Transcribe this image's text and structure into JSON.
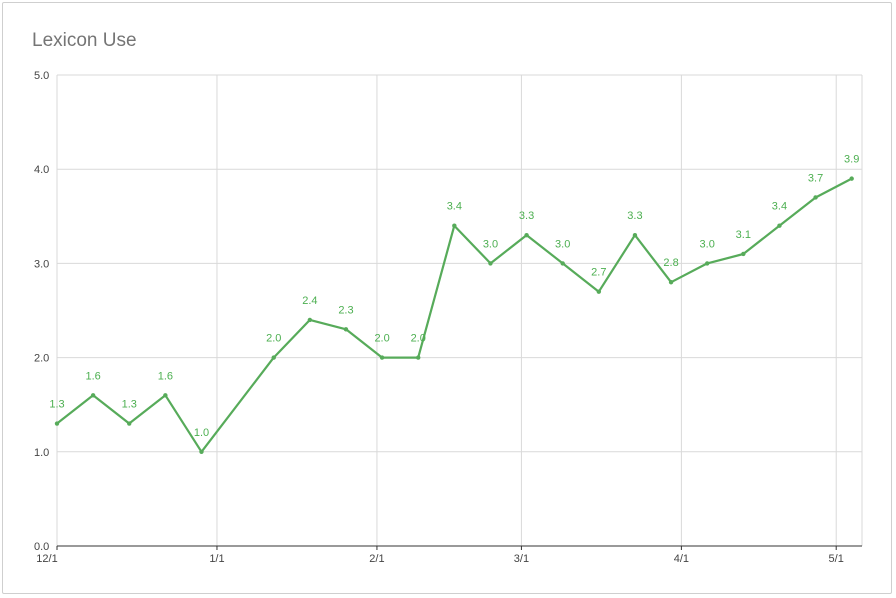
{
  "chart_data": {
    "type": "line",
    "title": "Lexicon Use",
    "xlabel": "",
    "ylabel": "",
    "ylim": [
      0,
      5
    ],
    "yticks": [
      "0.0",
      "1.0",
      "2.0",
      "3.0",
      "4.0",
      "5.0"
    ],
    "xticks": [
      {
        "label": "12/1",
        "date": "2020-12-01"
      },
      {
        "label": "1/1",
        "date": "2021-01-01"
      },
      {
        "label": "2/1",
        "date": "2021-02-01"
      },
      {
        "label": "3/1",
        "date": "2021-03-01"
      },
      {
        "label": "4/1",
        "date": "2021-04-01"
      },
      {
        "label": "5/1",
        "date": "2021-05-01"
      }
    ],
    "x_range": [
      "2020-12-01",
      "2021-05-06"
    ],
    "grid": true,
    "legend": "none",
    "series": [
      {
        "color": "#57ab5a",
        "points": [
          {
            "x": "2020-12-01",
            "y": 1.3,
            "label": "1.3"
          },
          {
            "x": "2020-12-08",
            "y": 1.6,
            "label": "1.6"
          },
          {
            "x": "2020-12-15",
            "y": 1.3,
            "label": "1.3"
          },
          {
            "x": "2020-12-22",
            "y": 1.6,
            "label": "1.6"
          },
          {
            "x": "2020-12-29",
            "y": 1.0,
            "label": "1.0"
          },
          {
            "x": "2021-01-12",
            "y": 2.0,
            "label": "2.0"
          },
          {
            "x": "2021-01-19",
            "y": 2.4,
            "label": "2.4"
          },
          {
            "x": "2021-01-26",
            "y": 2.3,
            "label": "2.3"
          },
          {
            "x": "2021-02-02",
            "y": 2.0,
            "label": "2.0"
          },
          {
            "x": "2021-02-09",
            "y": 2.0,
            "label": "2.0"
          },
          {
            "x": "2021-02-16",
            "y": 3.4,
            "label": "3.4"
          },
          {
            "x": "2021-02-23",
            "y": 3.0,
            "label": "3.0"
          },
          {
            "x": "2021-03-02",
            "y": 3.3,
            "label": "3.3"
          },
          {
            "x": "2021-03-09",
            "y": 3.0,
            "label": "3.0"
          },
          {
            "x": "2021-03-16",
            "y": 2.7,
            "label": "2.7"
          },
          {
            "x": "2021-03-23",
            "y": 3.3,
            "label": "3.3"
          },
          {
            "x": "2021-03-30",
            "y": 2.8,
            "label": "2.8"
          },
          {
            "x": "2021-04-06",
            "y": 3.0,
            "label": "3.0"
          },
          {
            "x": "2021-04-13",
            "y": 3.1,
            "label": "3.1"
          },
          {
            "x": "2021-04-20",
            "y": 3.4,
            "label": "3.4"
          },
          {
            "x": "2021-04-27",
            "y": 3.7,
            "label": "3.7"
          },
          {
            "x": "2021-05-04",
            "y": 3.9,
            "label": "3.9"
          }
        ]
      }
    ]
  }
}
